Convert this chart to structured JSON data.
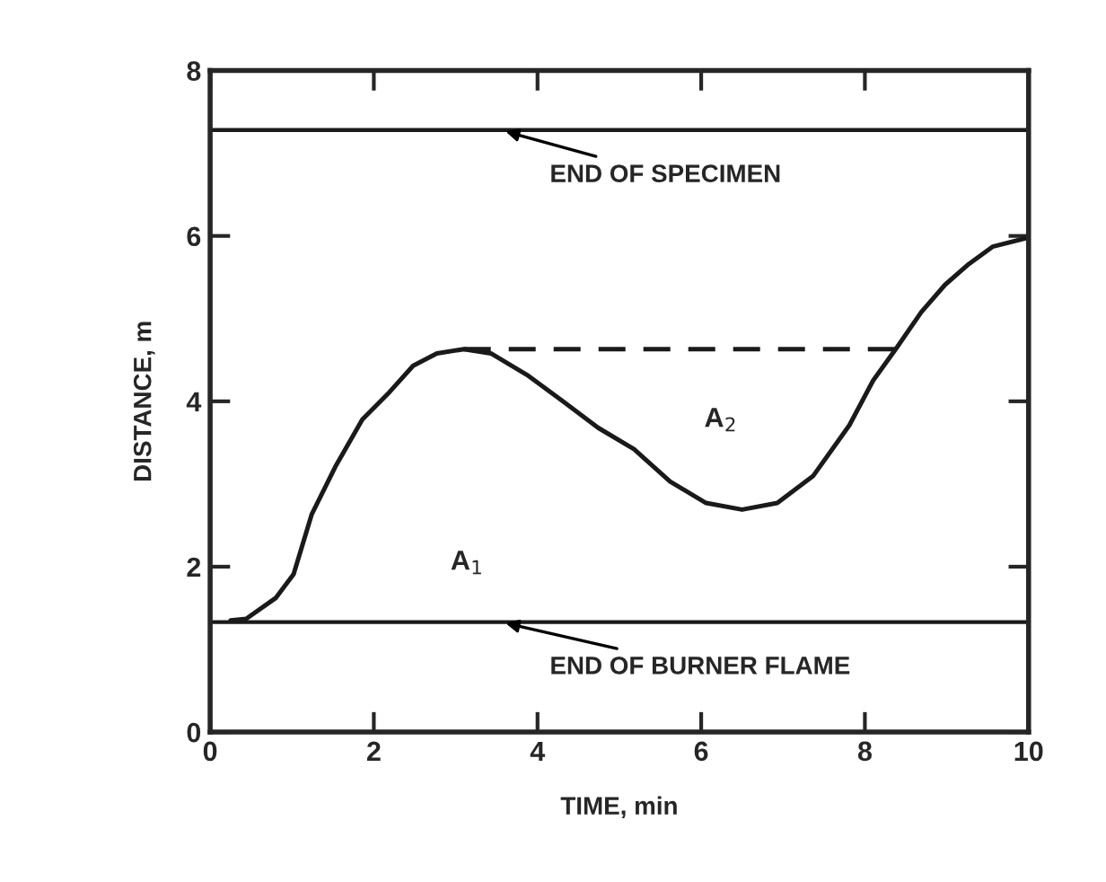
{
  "chart_data": {
    "type": "line",
    "xlabel": "TIME, min",
    "ylabel": "DISTANCE, m",
    "xlim": [
      0,
      10
    ],
    "ylim": [
      0,
      8
    ],
    "xticks": [
      0,
      2,
      4,
      6,
      8,
      10
    ],
    "yticks": [
      0,
      2,
      4,
      6,
      8
    ],
    "series": [
      {
        "color": "#1a1a1a",
        "line_style": "solid",
        "x": [
          0.25,
          0.44,
          0.8,
          1.02,
          1.24,
          1.53,
          1.86,
          2.19,
          2.48,
          2.77,
          3.1,
          3.43,
          3.87,
          4.31,
          4.74,
          5.18,
          5.62,
          6.06,
          6.5,
          6.93,
          7.37,
          7.81,
          8.1,
          8.39,
          8.69,
          8.98,
          9.27,
          9.56,
          10.0
        ],
        "values": [
          1.35,
          1.37,
          1.62,
          1.91,
          2.63,
          3.21,
          3.78,
          4.11,
          4.43,
          4.58,
          4.63,
          4.58,
          4.32,
          4.0,
          3.68,
          3.42,
          3.03,
          2.77,
          2.69,
          2.77,
          3.1,
          3.71,
          4.25,
          4.65,
          5.08,
          5.41,
          5.66,
          5.87,
          5.98
        ]
      },
      {
        "color": "#1a1a1a",
        "line_style": "dashed",
        "x": [
          3.1,
          8.39
        ],
        "values": [
          4.63,
          4.63
        ]
      }
    ],
    "ref_lines": [
      {
        "axis": "y",
        "value": 7.28,
        "label": "END OF SPECIMEN",
        "color": "#1a1a1a"
      },
      {
        "axis": "y",
        "value": 1.33,
        "label": "END OF BURNER FLAME",
        "color": "#1a1a1a"
      }
    ],
    "annotations": [
      "A$_{1}$",
      "A$_{2}$"
    ],
    "grid": false,
    "legend": false
  }
}
